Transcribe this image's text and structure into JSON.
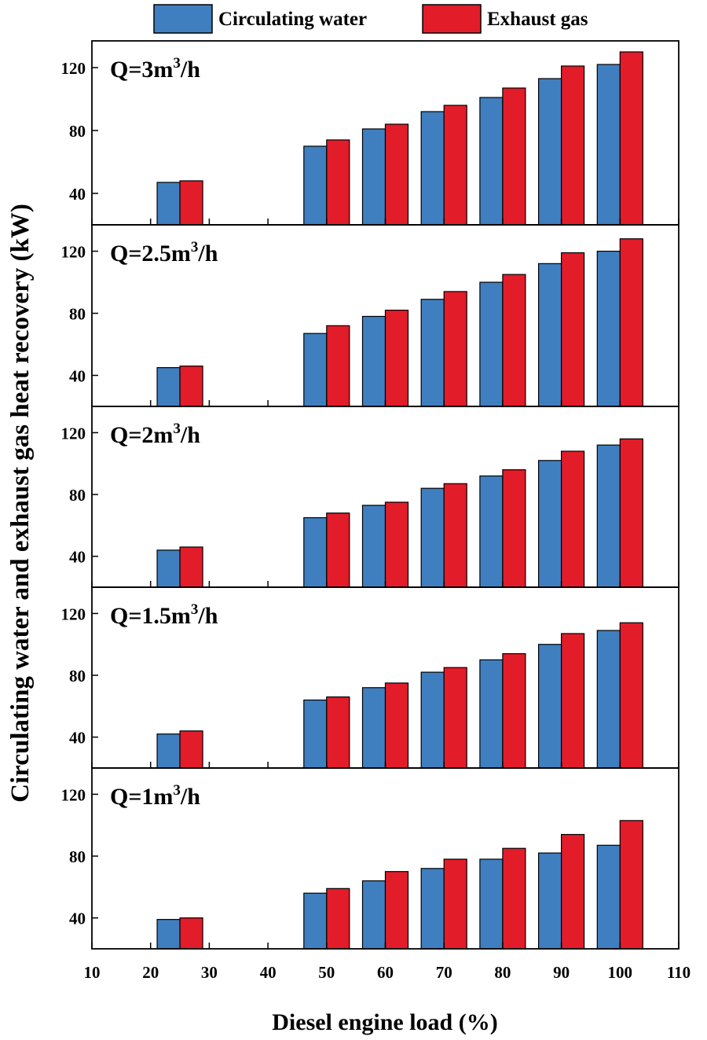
{
  "chart_data": {
    "type": "bar",
    "xlabel": "Diesel engine load (%)",
    "ylabel": "Circulating water and exhaust gas heat recovery (kW)",
    "x": [
      25,
      50,
      60,
      70,
      80,
      90,
      100
    ],
    "xlim": [
      10,
      110
    ],
    "xticks": [
      10,
      20,
      30,
      40,
      50,
      60,
      70,
      80,
      90,
      100,
      110
    ],
    "ylim": [
      20,
      137
    ],
    "yticks": [
      40,
      80,
      120
    ],
    "legend": {
      "placement": "top",
      "entries": [
        {
          "name": "Circulating water",
          "color": "#3f7fbf"
        },
        {
          "name": "Exhaust gas",
          "color": "#e31c2a"
        }
      ]
    },
    "panels": [
      {
        "label": {
          "pre": "Q=3m",
          "sup": "3",
          "post": "/h"
        },
        "series": [
          {
            "name": "Circulating water",
            "values": [
              47,
              70,
              81,
              92,
              101,
              113,
              122
            ]
          },
          {
            "name": "Exhaust gas",
            "values": [
              48,
              74,
              84,
              96,
              107,
              121,
              130
            ]
          }
        ]
      },
      {
        "label": {
          "pre": "Q=2.5m",
          "sup": "3",
          "post": "/h"
        },
        "series": [
          {
            "name": "Circulating water",
            "values": [
              45,
              67,
              78,
              89,
              100,
              112,
              120
            ]
          },
          {
            "name": "Exhaust gas",
            "values": [
              46,
              72,
              82,
              94,
              105,
              119,
              128
            ]
          }
        ]
      },
      {
        "label": {
          "pre": "Q=2m",
          "sup": "3",
          "post": "/h"
        },
        "series": [
          {
            "name": "Circulating water",
            "values": [
              44,
              65,
              73,
              84,
              92,
              102,
              112
            ]
          },
          {
            "name": "Exhaust gas",
            "values": [
              46,
              68,
              75,
              87,
              96,
              108,
              116
            ]
          }
        ]
      },
      {
        "label": {
          "pre": "Q=1.5m",
          "sup": "3",
          "post": "/h"
        },
        "series": [
          {
            "name": "Circulating water",
            "values": [
              42,
              64,
              72,
              82,
              90,
              100,
              109
            ]
          },
          {
            "name": "Exhaust gas",
            "values": [
              44,
              66,
              75,
              85,
              94,
              107,
              114
            ]
          }
        ]
      },
      {
        "label": {
          "pre": "Q=1m",
          "sup": "3",
          "post": "/h"
        },
        "series": [
          {
            "name": "Circulating water",
            "values": [
              39,
              56,
              64,
              72,
              78,
              82,
              87
            ]
          },
          {
            "name": "Exhaust gas",
            "values": [
              40,
              59,
              70,
              78,
              85,
              94,
              103
            ]
          }
        ]
      }
    ]
  }
}
